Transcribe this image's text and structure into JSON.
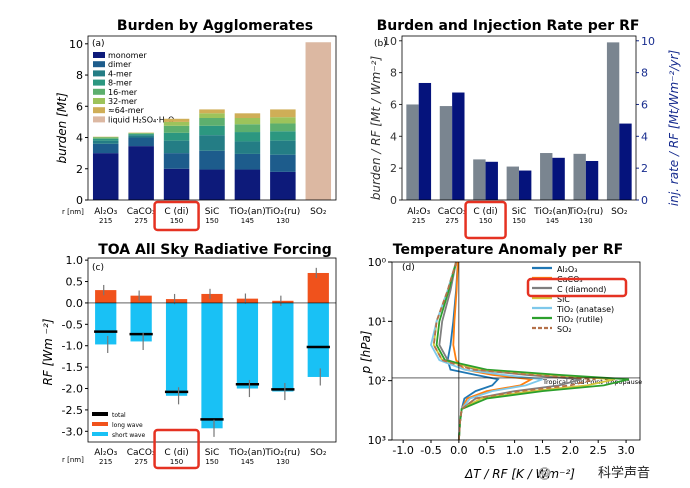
{
  "colors": {
    "monomer": "#0d1a7a",
    "dimer": "#1d5c8c",
    "mer4": "#247d85",
    "mer8": "#2c9780",
    "mer16": "#5daf6e",
    "mer32": "#9dc35b",
    "mer64": "#cfae57",
    "liquid": "#dcb8a2",
    "burden_bar": "#7a8590",
    "inj_bar": "#05137c",
    "inj_axis": "#182d8f",
    "lw": "#f0521c",
    "sw": "#19c1f5",
    "highlight": "#e53222"
  },
  "panels": {
    "a": {
      "title": "Burden by Agglomerates",
      "tag": "(a)",
      "ylabel": "burden [Mt]"
    },
    "b": {
      "title": "Burden and Injection Rate per RF",
      "tag": "(b)",
      "ylabel_left": "burden / RF [Mt / Wm⁻²]",
      "ylabel_right": "inj. rate / RF [Mt/Wm⁻²/yr]"
    },
    "c": {
      "title": "TOA All Sky Radiative Forcing",
      "tag": "(c)",
      "ylabel": "RF [Wm ⁻²]"
    },
    "d": {
      "title": "Temperature Anomaly per RF",
      "tag": "(d)",
      "ylabel": "p [hPa]",
      "xlabel": "ΔT / RF [K / Wm⁻²]",
      "tropopause_label": "Tropical Cold-Point Tropopause"
    }
  },
  "r_label": "r [nm]",
  "watermark": {
    "a": "@",
    "b": "科学声音"
  },
  "chart_data": [
    {
      "type": "bar",
      "stacked": true,
      "categories": [
        "Al₂O₃",
        "CaCO₃",
        "C (di)",
        "SiC",
        "TiO₂(an)",
        "TiO₂(ru)",
        "SO₂"
      ],
      "radii": [
        "215",
        "275",
        "150",
        "150",
        "145",
        "130",
        ""
      ],
      "ylim": [
        0,
        10.5
      ],
      "yticks": [
        0,
        2,
        4,
        6,
        8,
        10
      ],
      "series": [
        {
          "name": "monomer",
          "values": [
            3.0,
            3.45,
            2.0,
            1.95,
            1.95,
            1.8,
            0
          ]
        },
        {
          "name": "dimer",
          "values": [
            0.6,
            0.55,
            1.0,
            1.2,
            1.0,
            1.1,
            0
          ]
        },
        {
          "name": "4-mer",
          "values": [
            0.2,
            0.15,
            0.8,
            1.0,
            0.8,
            0.9,
            0
          ]
        },
        {
          "name": "8-mer",
          "values": [
            0.12,
            0.07,
            0.5,
            0.6,
            0.6,
            0.6,
            0
          ]
        },
        {
          "name": "16-mer",
          "values": [
            0.08,
            0.05,
            0.45,
            0.5,
            0.5,
            0.5,
            0
          ]
        },
        {
          "name": "32-mer",
          "values": [
            0.03,
            0.03,
            0.25,
            0.3,
            0.4,
            0.4,
            0
          ]
        },
        {
          "name": "≈64-mer",
          "values": [
            0.02,
            0.02,
            0.2,
            0.25,
            0.3,
            0.5,
            0
          ]
        },
        {
          "name": "liquid H₂SO₄·H₂O",
          "values": [
            0,
            0,
            0,
            0,
            0,
            0,
            10.1
          ]
        }
      ]
    },
    {
      "type": "bar",
      "categories": [
        "Al₂O₃",
        "CaCO₃",
        "C (di)",
        "SiC",
        "TiO₂(an)",
        "TiO₂(ru)",
        "SO₂"
      ],
      "radii": [
        "215",
        "275",
        "150",
        "150",
        "145",
        "130",
        ""
      ],
      "ylim": [
        0,
        10.3
      ],
      "yticks": [
        0,
        2,
        4,
        6,
        8,
        10
      ],
      "series": [
        {
          "name": "burden / RF",
          "values": [
            6.0,
            5.9,
            2.55,
            2.1,
            2.95,
            2.9,
            9.9
          ]
        },
        {
          "name": "inj. rate / RF",
          "values": [
            7.35,
            6.75,
            2.4,
            1.85,
            2.65,
            2.45,
            4.8
          ]
        }
      ]
    },
    {
      "type": "bar",
      "categories": [
        "Al₂O₃",
        "CaCO₃",
        "C (di)",
        "SiC",
        "TiO₂(an)",
        "TiO₂(ru)",
        "SO₂"
      ],
      "radii": [
        "215",
        "275",
        "150",
        "150",
        "145",
        "130",
        ""
      ],
      "ylim": [
        -3.25,
        1.05
      ],
      "yticks": [
        1.0,
        0.5,
        0.0,
        -0.5,
        -1.0,
        -1.5,
        -2.0,
        -2.5,
        -3.0
      ],
      "legend": [
        "total",
        "long wave",
        "short wave"
      ],
      "series": [
        {
          "name": "long wave",
          "values": [
            0.3,
            0.17,
            0.09,
            0.21,
            0.1,
            0.05,
            0.7
          ]
        },
        {
          "name": "short wave",
          "values": [
            -0.97,
            -0.9,
            -2.17,
            -2.93,
            -2.0,
            -2.07,
            -1.73
          ]
        },
        {
          "name": "total",
          "values": [
            -0.67,
            -0.73,
            -2.08,
            -2.72,
            -1.9,
            -2.02,
            -1.03
          ]
        }
      ]
    },
    {
      "type": "line",
      "xlim": [
        -1.2,
        3.25
      ],
      "xticks": [
        -1.0,
        -0.5,
        0.0,
        0.5,
        1.0,
        1.5,
        2.0,
        2.5,
        3.0
      ],
      "ylim": [
        1000,
        1
      ],
      "yscale": "log",
      "tropopause_hPa": 90,
      "series": [
        {
          "name": "Al₂O₃",
          "color": "#1f77b4",
          "dash": false,
          "points": [
            [
              0,
              1000
            ],
            [
              0.02,
              500
            ],
            [
              0.05,
              300
            ],
            [
              0.1,
              200
            ],
            [
              0.3,
              150
            ],
            [
              0.6,
              120
            ],
            [
              0.7,
              95
            ],
            [
              0.3,
              80
            ],
            [
              -0.15,
              65
            ],
            [
              -0.2,
              45
            ],
            [
              -0.15,
              25
            ],
            [
              -0.1,
              10
            ],
            [
              -0.05,
              3
            ],
            [
              -0.02,
              1
            ]
          ]
        },
        {
          "name": "CaCO₃",
          "color": "#ff7f0e",
          "dash": false,
          "points": [
            [
              0,
              1000
            ],
            [
              0.02,
              500
            ],
            [
              0.05,
              300
            ],
            [
              0.15,
              200
            ],
            [
              0.5,
              150
            ],
            [
              1.1,
              120
            ],
            [
              1.3,
              95
            ],
            [
              0.6,
              80
            ],
            [
              0.1,
              65
            ],
            [
              -0.05,
              45
            ],
            [
              -0.1,
              25
            ],
            [
              -0.08,
              10
            ],
            [
              -0.04,
              3
            ],
            [
              -0.02,
              1
            ]
          ]
        },
        {
          "name": "C (diamond)",
          "color": "#7f7f7f",
          "dash": false,
          "points": [
            [
              0,
              1000
            ],
            [
              0.02,
              500
            ],
            [
              0.05,
              300
            ],
            [
              0.3,
              200
            ],
            [
              1.0,
              150
            ],
            [
              1.8,
              120
            ],
            [
              2.2,
              95
            ],
            [
              1.2,
              80
            ],
            [
              0.3,
              65
            ],
            [
              -0.2,
              45
            ],
            [
              -0.35,
              25
            ],
            [
              -0.3,
              10
            ],
            [
              -0.15,
              3
            ],
            [
              -0.05,
              1
            ]
          ]
        },
        {
          "name": "SiC",
          "color": "#d4c43a",
          "dash": false,
          "points": [
            [
              0,
              1000
            ],
            [
              0.02,
              500
            ],
            [
              0.05,
              300
            ],
            [
              0.4,
              200
            ],
            [
              1.3,
              150
            ],
            [
              2.3,
              120
            ],
            [
              2.8,
              95
            ],
            [
              1.6,
              80
            ],
            [
              0.4,
              65
            ],
            [
              -0.3,
              45
            ],
            [
              -0.45,
              25
            ],
            [
              -0.4,
              10
            ],
            [
              -0.2,
              3
            ],
            [
              -0.05,
              1
            ]
          ]
        },
        {
          "name": "TiO₂ (anatase)",
          "color": "#7ec8ea",
          "dash": false,
          "points": [
            [
              0,
              1000
            ],
            [
              0.02,
              500
            ],
            [
              0.05,
              300
            ],
            [
              0.2,
              200
            ],
            [
              0.6,
              150
            ],
            [
              1.2,
              120
            ],
            [
              1.5,
              95
            ],
            [
              0.8,
              80
            ],
            [
              0.1,
              65
            ],
            [
              -0.35,
              45
            ],
            [
              -0.5,
              25
            ],
            [
              -0.4,
              10
            ],
            [
              -0.2,
              3
            ],
            [
              -0.05,
              1
            ]
          ]
        },
        {
          "name": "TiO₂ (rutile)",
          "color": "#2ca02c",
          "dash": false,
          "points": [
            [
              0,
              1000
            ],
            [
              0.02,
              500
            ],
            [
              0.05,
              300
            ],
            [
              0.5,
              200
            ],
            [
              1.5,
              150
            ],
            [
              2.6,
              120
            ],
            [
              3.05,
              95
            ],
            [
              1.8,
              80
            ],
            [
              0.5,
              65
            ],
            [
              -0.25,
              45
            ],
            [
              -0.4,
              25
            ],
            [
              -0.35,
              10
            ],
            [
              -0.18,
              3
            ],
            [
              -0.05,
              1
            ]
          ]
        },
        {
          "name": "SO₂",
          "color": "#b5714a",
          "dash": true,
          "points": [
            [
              0,
              1000
            ],
            [
              0.02,
              500
            ],
            [
              0.05,
              300
            ],
            [
              0.3,
              200
            ],
            [
              1.1,
              150
            ],
            [
              2.0,
              120
            ],
            [
              2.45,
              95
            ],
            [
              1.3,
              80
            ],
            [
              0.25,
              65
            ],
            [
              -0.3,
              45
            ],
            [
              -0.45,
              25
            ],
            [
              -0.4,
              10
            ],
            [
              -0.2,
              3
            ],
            [
              -0.05,
              1
            ]
          ]
        }
      ]
    }
  ]
}
